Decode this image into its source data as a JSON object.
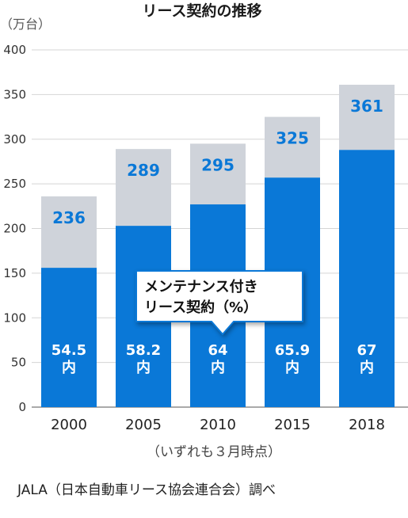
{
  "chart_data": {
    "type": "bar",
    "title": "リース契約の推移",
    "unit_label": "（万台）",
    "categories": [
      "2000",
      "2005",
      "2010",
      "2015",
      "2018"
    ],
    "series": [
      {
        "name": "メンテナンス付きリース契約（%）",
        "values": [
          156,
          203,
          227,
          257,
          288
        ]
      },
      {
        "values": [
          80,
          86,
          68,
          68,
          73
        ]
      }
    ],
    "totals": [
      236,
      289,
      295,
      325,
      361
    ],
    "percent_labels": [
      "54.5",
      "58.2",
      "64",
      "65.9",
      "67"
    ],
    "inner_suffix": "内",
    "yticks": [
      0,
      50,
      100,
      150,
      200,
      250,
      300,
      350,
      400
    ],
    "ylim": [
      0,
      400
    ],
    "grid": true,
    "xlabel": "",
    "ylabel": "",
    "callout_lines": [
      "メンテナンス付き",
      "リース契約（%）"
    ],
    "note": "（いずれも３月時点）",
    "source": "JALA（日本自動車リース協会連合会）調べ",
    "colors": {
      "bar_bottom": "#0a78d7",
      "bar_top": "#cfd3da",
      "total_text": "#0a78d7",
      "grid": "#d5d5d5",
      "callout_border": "#0a78d7"
    }
  }
}
